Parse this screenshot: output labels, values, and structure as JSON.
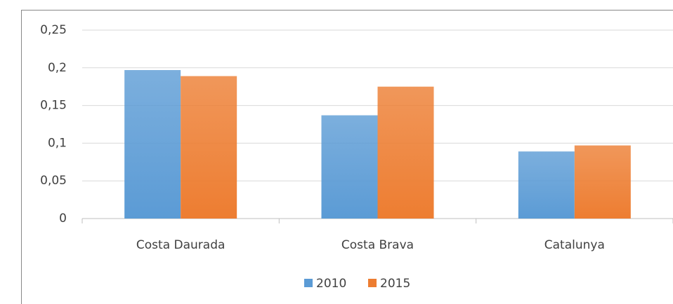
{
  "chart_data": {
    "type": "bar",
    "categories": [
      "Costa Daurada",
      "Costa Brava",
      "Catalunya"
    ],
    "series": [
      {
        "name": "2010",
        "color": "#5b9bd5",
        "values": [
          0.197,
          0.137,
          0.089
        ]
      },
      {
        "name": "2015",
        "color": "#ed7d31",
        "values": [
          0.189,
          0.175,
          0.097
        ]
      }
    ],
    "ylim": [
      0,
      0.25
    ],
    "yticks": [
      0,
      {
        "value": 0.05,
        "label": "0,05"
      },
      {
        "value": 0.1,
        "label": "0,1"
      },
      {
        "value": 0.15,
        "label": "0,15"
      },
      {
        "value": 0.2,
        "label": "0,2"
      },
      {
        "value": 0.25,
        "label": "0,25"
      }
    ],
    "grid": true,
    "legend": "bottom"
  }
}
